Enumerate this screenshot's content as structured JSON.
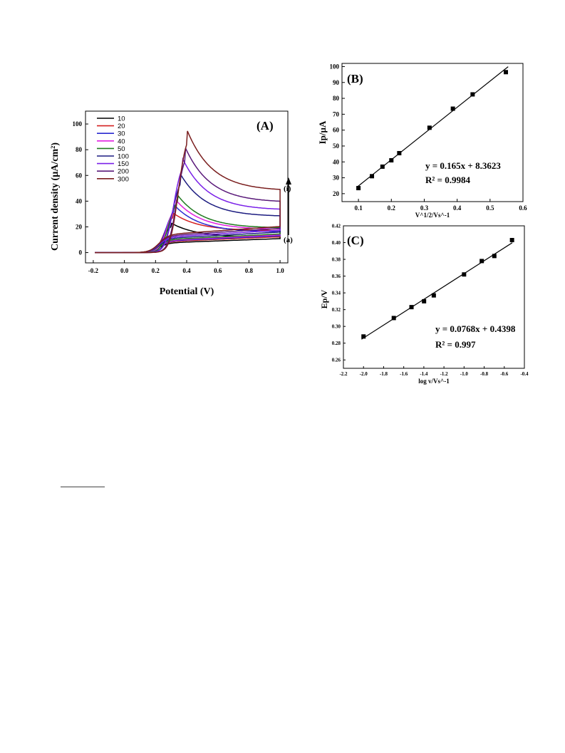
{
  "chart_data": [
    {
      "type": "line",
      "panel": "(A)",
      "xlabel": "Potential (V)",
      "ylabel": "Current density (µA/cm²)",
      "xlim": [
        -0.25,
        1.05
      ],
      "ylim": [
        -8,
        110
      ],
      "xticks": [
        "-0.2",
        "0.0",
        "0.2",
        "0.4",
        "0.6",
        "0.8",
        "1.0"
      ],
      "yticks": [
        "0",
        "20",
        "40",
        "60",
        "80",
        "100"
      ],
      "legend": "top-left",
      "annotations": [
        "(i)",
        "(a)"
      ],
      "series": [
        {
          "name": "10",
          "color": "#000000",
          "peak_x": 0.3,
          "peak_y": 23,
          "end_y": 12,
          "base_y": 7.5
        },
        {
          "name": "20",
          "color": "#d42020",
          "peak_x": 0.31,
          "peak_y": 31,
          "end_y": 17,
          "base_y": 8.5
        },
        {
          "name": "30",
          "color": "#2a2ad0",
          "peak_x": 0.32,
          "peak_y": 37,
          "end_y": 16,
          "base_y": 9
        },
        {
          "name": "40",
          "color": "#e020e0",
          "peak_x": 0.33,
          "peak_y": 41,
          "end_y": 18,
          "base_y": 9.5
        },
        {
          "name": "50",
          "color": "#207a20",
          "peak_x": 0.34,
          "peak_y": 45,
          "end_y": 19,
          "base_y": 10
        },
        {
          "name": "100",
          "color": "#1c1c80",
          "peak_x": 0.36,
          "peak_y": 61,
          "end_y": 28,
          "base_y": 11
        },
        {
          "name": "150",
          "color": "#7a20e8",
          "peak_x": 0.37,
          "peak_y": 74,
          "end_y": 33,
          "base_y": 12
        },
        {
          "name": "200",
          "color": "#5a1a7a",
          "peak_x": 0.39,
          "peak_y": 82,
          "end_y": 39,
          "base_y": 13
        },
        {
          "name": "300",
          "color": "#7a1e1e",
          "peak_x": 0.4,
          "peak_y": 96,
          "end_y": 48,
          "base_y": 14
        }
      ]
    },
    {
      "type": "scatter",
      "panel": "(B)",
      "xlabel": "V^1/2/Vs^-1",
      "ylabel": "Ip/µA",
      "xlim": [
        0.05,
        0.6
      ],
      "ylim": [
        15,
        102
      ],
      "xticks": [
        "0.1",
        "0.2",
        "0.3",
        "0.4",
        "0.5",
        "0.6"
      ],
      "yticks": [
        "20",
        "30",
        "40",
        "50",
        "60",
        "70",
        "80",
        "90",
        "100"
      ],
      "fit_equation": "y = 0.165x + 8.3623",
      "r2": "R² = 0.9984",
      "fit_slope_per_unit": 165,
      "fit_intercept": 8.3623,
      "points": [
        {
          "x": 0.1,
          "y": 23.5
        },
        {
          "x": 0.141,
          "y": 31.0
        },
        {
          "x": 0.173,
          "y": 37.0
        },
        {
          "x": 0.2,
          "y": 41.0
        },
        {
          "x": 0.224,
          "y": 45.5
        },
        {
          "x": 0.316,
          "y": 61.5
        },
        {
          "x": 0.387,
          "y": 73.5
        },
        {
          "x": 0.447,
          "y": 82.5
        },
        {
          "x": 0.548,
          "y": 96.5
        }
      ]
    },
    {
      "type": "scatter",
      "panel": "(C)",
      "xlabel": "log v/Vs^-1",
      "ylabel": "Ep/V",
      "xlim": [
        -2.2,
        -0.4
      ],
      "ylim": [
        0.25,
        0.42
      ],
      "xticks": [
        "-2.2",
        "-2.0",
        "-1.8",
        "-1.6",
        "-1.4",
        "-1.2",
        "-1.0",
        "-0.8",
        "-0.6",
        "-0.4"
      ],
      "yticks": [
        "0.26",
        "0.28",
        "0.30",
        "0.32",
        "0.34",
        "0.36",
        "0.38",
        "0.40",
        "0.42"
      ],
      "fit_equation": "y = 0.0768x + 0.4398",
      "r2": "R² = 0.997",
      "fit_slope": 0.0768,
      "fit_intercept": 0.4398,
      "points": [
        {
          "x": -2.0,
          "y": 0.288
        },
        {
          "x": -1.699,
          "y": 0.31
        },
        {
          "x": -1.523,
          "y": 0.323
        },
        {
          "x": -1.398,
          "y": 0.33
        },
        {
          "x": -1.301,
          "y": 0.337
        },
        {
          "x": -1.0,
          "y": 0.362
        },
        {
          "x": -0.824,
          "y": 0.378
        },
        {
          "x": -0.699,
          "y": 0.384
        },
        {
          "x": -0.523,
          "y": 0.403
        }
      ]
    }
  ]
}
